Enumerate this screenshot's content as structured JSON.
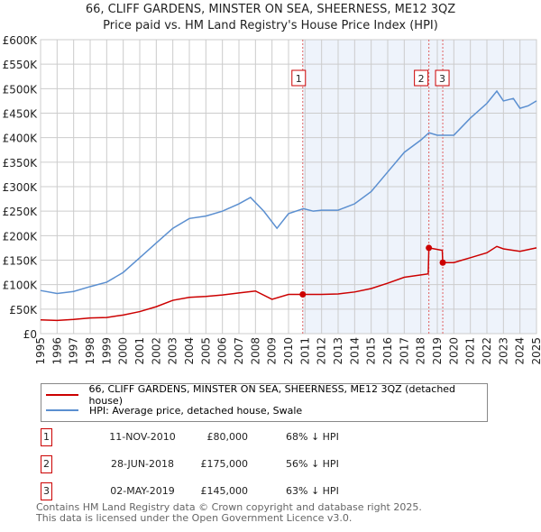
{
  "chart_data": {
    "type": "line",
    "title": "66, CLIFF GARDENS, MINSTER ON SEA, SHEERNESS, ME12 3QZ",
    "subtitle": "Price paid vs. HM Land Registry's House Price Index (HPI)",
    "xlim": [
      1995,
      2025
    ],
    "ylim": [
      0,
      600000
    ],
    "yticks": [
      0,
      50000,
      100000,
      150000,
      200000,
      250000,
      300000,
      350000,
      400000,
      450000,
      500000,
      550000,
      600000
    ],
    "ytick_labels": [
      "£0",
      "£50K",
      "£100K",
      "£150K",
      "£200K",
      "£250K",
      "£300K",
      "£350K",
      "£400K",
      "£450K",
      "£500K",
      "£550K",
      "£600K"
    ],
    "xticks": [
      "1995",
      "1996",
      "1997",
      "1998",
      "1999",
      "2000",
      "2001",
      "2002",
      "2003",
      "2004",
      "2005",
      "2006",
      "2007",
      "2008",
      "2009",
      "2010",
      "2011",
      "2012",
      "2013",
      "2014",
      "2015",
      "2016",
      "2017",
      "2018",
      "2019",
      "2020",
      "2021",
      "2022",
      "2023",
      "2024",
      "2025"
    ],
    "grid": true,
    "series": [
      {
        "name": "66, CLIFF GARDENS, MINSTER ON SEA, SHEERNESS, ME12 3QZ (detached house)",
        "color": "#cc0000",
        "x": [
          1995,
          1996,
          1997,
          1998,
          1999,
          2000,
          2001,
          2002,
          2003,
          2004,
          2005,
          2006,
          2007,
          2008,
          2009,
          2010,
          2010.86,
          2012,
          2013,
          2014,
          2015,
          2016,
          2017,
          2018.45,
          2018.49,
          2019.3,
          2019.33,
          2020,
          2021,
          2022,
          2022.6,
          2023,
          2024,
          2025
        ],
        "y": [
          28000,
          27000,
          29000,
          32000,
          33000,
          38000,
          45000,
          55000,
          68000,
          74000,
          76000,
          79000,
          83000,
          87000,
          70000,
          80000,
          80000,
          80000,
          81000,
          85000,
          92000,
          103000,
          115000,
          122000,
          175000,
          170000,
          145000,
          145000,
          155000,
          165000,
          178000,
          173000,
          168000,
          175000
        ]
      },
      {
        "name": "HPI: Average price, detached house, Swale",
        "color": "#5b8fd0",
        "x": [
          1995,
          1996,
          1997,
          1998,
          1999,
          2000,
          2001,
          2002,
          2003,
          2004,
          2005,
          2006,
          2007,
          2007.7,
          2008.5,
          2009.3,
          2010,
          2010.9,
          2011.5,
          2012,
          2013,
          2014,
          2015,
          2016,
          2017,
          2018,
          2018.5,
          2019,
          2020,
          2021,
          2022,
          2022.6,
          2023,
          2023.6,
          2024,
          2024.5,
          2025
        ],
        "y": [
          88000,
          82000,
          86000,
          96000,
          105000,
          125000,
          155000,
          185000,
          215000,
          235000,
          240000,
          250000,
          265000,
          278000,
          250000,
          215000,
          245000,
          255000,
          250000,
          252000,
          252000,
          265000,
          290000,
          330000,
          370000,
          395000,
          410000,
          405000,
          405000,
          440000,
          470000,
          495000,
          475000,
          480000,
          460000,
          465000,
          475000
        ]
      }
    ],
    "sales": [
      {
        "label": "1",
        "x": 2010.86,
        "y": 80000,
        "date": "11-NOV-2010",
        "price": "£80,000",
        "hpi": "68% ↓ HPI"
      },
      {
        "label": "2",
        "x": 2018.49,
        "y": 175000,
        "date": "28-JUN-2018",
        "price": "£175,000",
        "hpi": "56% ↓ HPI"
      },
      {
        "label": "3",
        "x": 2019.33,
        "y": 145000,
        "date": "02-MAY-2019",
        "price": "£145,000",
        "hpi": "63% ↓ HPI"
      }
    ]
  },
  "legend": {
    "red": "66, CLIFF GARDENS, MINSTER ON SEA, SHEERNESS, ME12 3QZ (detached house)",
    "blue": "HPI: Average price, detached house, Swale"
  },
  "footer": {
    "line1": "Contains HM Land Registry data © Crown copyright and database right 2025.",
    "line2": "This data is licensed under the Open Government Licence v3.0."
  }
}
